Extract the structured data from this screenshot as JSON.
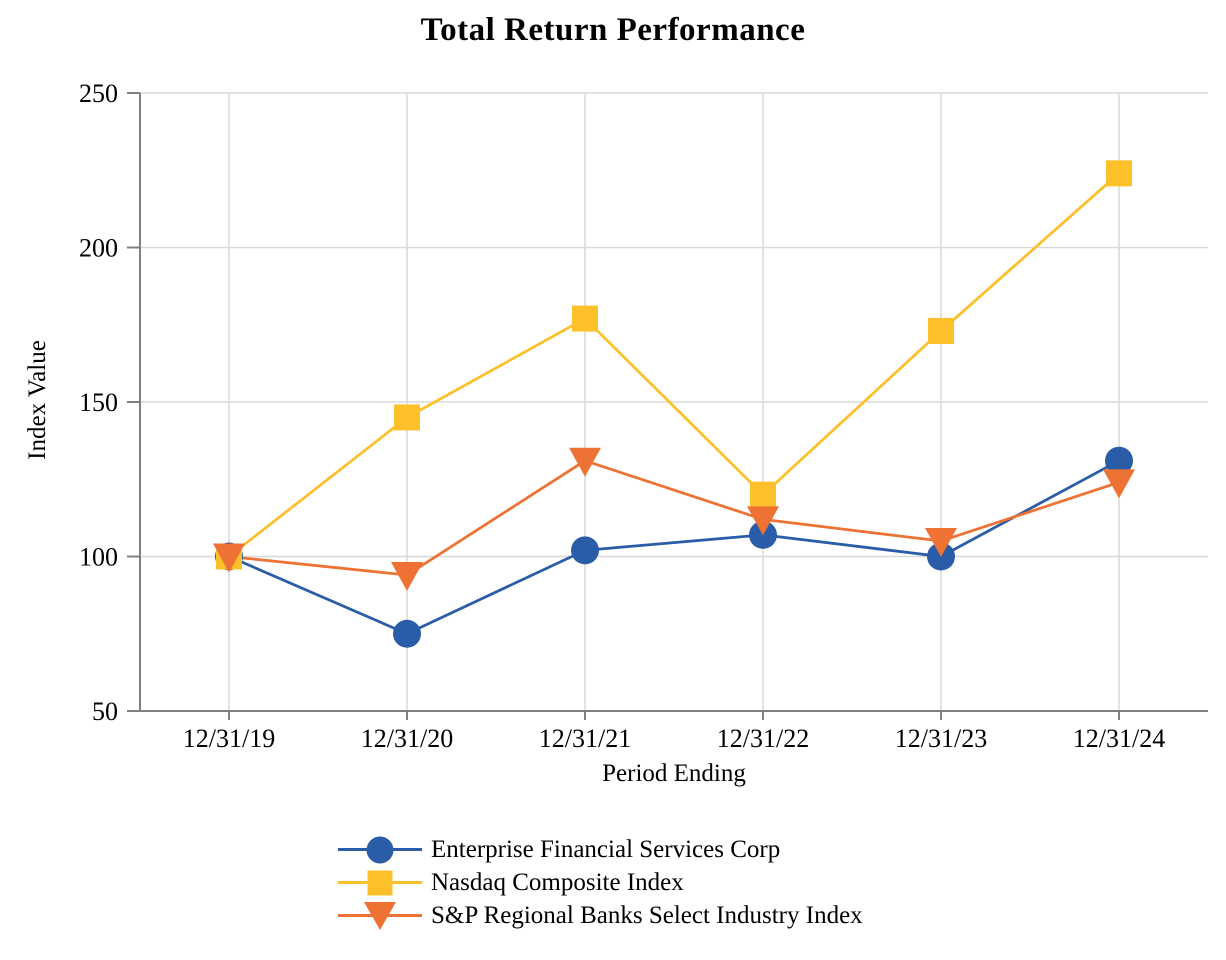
{
  "chart_data": {
    "type": "line",
    "title": "Total Return Performance",
    "xlabel": "Period Ending",
    "ylabel": "Index Value",
    "ylim": [
      50,
      250
    ],
    "yticks": [
      50,
      100,
      150,
      200,
      250
    ],
    "grid": true,
    "legend_position": "bottom-left",
    "categories": [
      "12/31/19",
      "12/31/20",
      "12/31/21",
      "12/31/22",
      "12/31/23",
      "12/31/24"
    ],
    "series": [
      {
        "name": "Enterprise Financial Services Corp",
        "marker": "circle",
        "color": "#2A5CA8",
        "values": [
          100,
          75,
          102,
          107,
          100,
          131
        ]
      },
      {
        "name": "Nasdaq Composite Index",
        "marker": "square",
        "color": "#FCC02A",
        "values": [
          100,
          145,
          177,
          120,
          173,
          224
        ]
      },
      {
        "name": "S&P Regional Banks Select Industry Index",
        "marker": "triangle-down",
        "color": "#ED7233",
        "values": [
          100,
          94,
          131,
          112,
          105,
          124
        ]
      }
    ],
    "colors": {
      "gridline": "#D9D9D9",
      "axis": "#808080",
      "text": "#000000",
      "background": "#FFFFFF"
    }
  }
}
